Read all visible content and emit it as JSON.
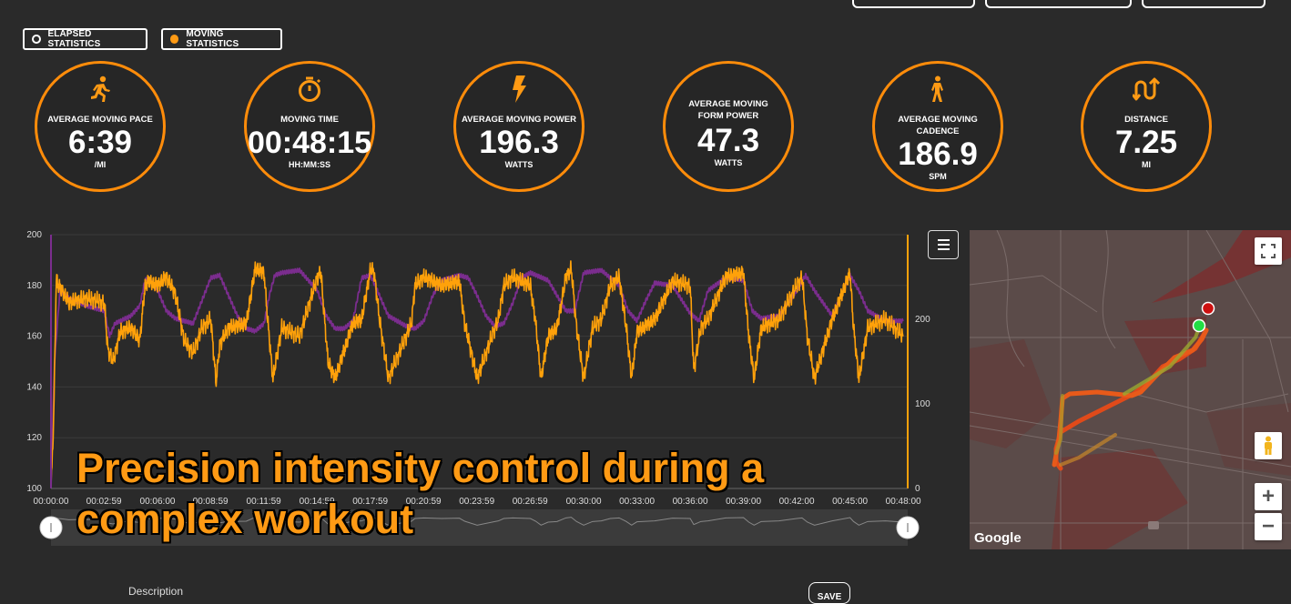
{
  "toggles": {
    "elapsed_label": "ELAPSED STATISTICS",
    "moving_label": "MOVING STATISTICS"
  },
  "stats": [
    {
      "icon": "running-icon",
      "label": "AVERAGE MOVING PACE",
      "value": "6:39",
      "unit": "/MI"
    },
    {
      "icon": "stopwatch-icon",
      "label": "MOVING TIME",
      "value": "00:48:15",
      "unit": "HH:MM:SS"
    },
    {
      "icon": "lightning-icon",
      "label": "AVERAGE MOVING POWER",
      "value": "196.3",
      "unit": "WATTS"
    },
    {
      "icon": "form-power-icon",
      "label": "AVERAGE MOVING FORM POWER",
      "value": "47.3",
      "unit": "WATTS"
    },
    {
      "icon": "walking-icon",
      "label": "AVERAGE MOVING CADENCE",
      "value": "186.9",
      "unit": "SPM"
    },
    {
      "icon": "distance-arrows-icon",
      "label": "DISTANCE",
      "value": "7.25",
      "unit": "MI"
    }
  ],
  "chart_data": {
    "type": "line",
    "y_left_ticks": [
      "200",
      "180",
      "160",
      "140",
      "120",
      "100"
    ],
    "y_left_lim": [
      100,
      200
    ],
    "y_right_ticks": [
      "200",
      "100",
      "0"
    ],
    "y_right_lim": [
      0,
      300
    ],
    "x_ticks": [
      "00:00:00",
      "00:02:59",
      "00:06:00",
      "00:08:59",
      "00:11:59",
      "00:14:59",
      "00:17:59",
      "00:20:59",
      "00:23:59",
      "00:26:59",
      "00:30:00",
      "00:33:00",
      "00:36:00",
      "00:39:00",
      "00:42:00",
      "00:45:00",
      "00:48:00"
    ],
    "x_minutes": [
      0,
      2.98,
      6,
      8.98,
      11.98,
      14.98,
      17.98,
      20.98,
      23.98,
      26.98,
      30,
      33,
      36,
      39,
      42,
      45,
      48
    ],
    "x_max_minutes": 48.25,
    "series": [
      {
        "axis": "left",
        "color": "#7b2d8e",
        "x": [
          0,
          0.2,
          0.5,
          1,
          2,
          3,
          3.3,
          3.6,
          4.5,
          5,
          5.3,
          5.5,
          6,
          6.5,
          7,
          8,
          9,
          9.5,
          10,
          10.5,
          11,
          11.5,
          12,
          12.3,
          12.6,
          13,
          14,
          15,
          15.5,
          16,
          16.5,
          17,
          17.5,
          18,
          18.5,
          19,
          20,
          20.5,
          21,
          21.5,
          22,
          23,
          23.5,
          24,
          24.5,
          25,
          25.5,
          26,
          26.5,
          27,
          28,
          28.5,
          29,
          29.5,
          30,
          31,
          32,
          32.5,
          33,
          33.5,
          34,
          35,
          36,
          36.5,
          37,
          38,
          39,
          39.5,
          40,
          41,
          42,
          42.5,
          43,
          44,
          45,
          45.5,
          46,
          47,
          48
        ],
        "y": [
          100,
          150,
          178,
          175,
          172,
          170,
          160,
          165,
          168,
          172,
          182,
          183,
          178,
          170,
          167,
          165,
          183,
          184,
          176,
          168,
          163,
          162,
          165,
          176,
          184,
          185,
          186,
          178,
          168,
          163,
          163,
          166,
          183,
          184,
          176,
          168,
          164,
          163,
          166,
          176,
          182,
          184,
          183,
          176,
          168,
          164,
          165,
          173,
          183,
          185,
          182,
          176,
          170,
          170,
          185,
          186,
          180,
          170,
          166,
          174,
          181,
          180,
          169,
          166,
          178,
          183,
          182,
          170,
          167,
          168,
          178,
          184,
          178,
          168,
          184,
          178,
          170,
          166,
          166
        ]
      },
      {
        "axis": "right",
        "color": "#ffa10a",
        "x": [
          0,
          0.15,
          0.3,
          0.4,
          0.6,
          1,
          2,
          3,
          3.2,
          3.5,
          3.9,
          4.5,
          5,
          5.3,
          5.5,
          6,
          6.5,
          7,
          7.5,
          8,
          8.5,
          9,
          9.3,
          9.5,
          10,
          11,
          11.5,
          12,
          12.2,
          12.5,
          13,
          14,
          15,
          15.2,
          15.6,
          16,
          17,
          17.5,
          18,
          18.2,
          18.5,
          19,
          20,
          20.3,
          20.5,
          21,
          22,
          23,
          23.3,
          24,
          25,
          25.2,
          25.5,
          26,
          27,
          27.3,
          27.6,
          28,
          28.5,
          29,
          29.3,
          29.6,
          30,
          30.5,
          31,
          31.5,
          32,
          32.4,
          32.7,
          33,
          34,
          35,
          36,
          36.2,
          36.6,
          37,
          38,
          39,
          39.3,
          39.6,
          40,
          41,
          42,
          42.3,
          42.6,
          43,
          44,
          45,
          45.2,
          45.5,
          46,
          47,
          48
        ],
        "y": [
          0,
          80,
          250,
          240,
          235,
          220,
          225,
          220,
          165,
          150,
          185,
          190,
          175,
          240,
          245,
          240,
          250,
          230,
          175,
          160,
          190,
          200,
          125,
          170,
          190,
          195,
          260,
          255,
          200,
          130,
          190,
          180,
          250,
          255,
          150,
          130,
          195,
          200,
          260,
          255,
          200,
          130,
          180,
          195,
          240,
          250,
          240,
          245,
          195,
          130,
          190,
          200,
          240,
          250,
          240,
          195,
          130,
          180,
          190,
          250,
          260,
          190,
          130,
          190,
          200,
          240,
          250,
          190,
          130,
          185,
          200,
          245,
          240,
          140,
          190,
          200,
          250,
          255,
          180,
          130,
          190,
          200,
          240,
          250,
          180,
          130,
          200,
          255,
          190,
          130,
          190,
          200,
          180
        ]
      }
    ]
  },
  "caption": {
    "line1": "Precision intensity control during a",
    "line2": "complex workout"
  },
  "map": {
    "attribution": "Google",
    "zoom_in": "+",
    "zoom_out": "−"
  },
  "footer": {
    "description_label": "Description",
    "save_label": "SAVE"
  },
  "colors": {
    "accent": "#ff8c0a",
    "pace_line": "#ffa10a",
    "hr_line": "#7b2d8e",
    "background": "#2a2a2a"
  }
}
